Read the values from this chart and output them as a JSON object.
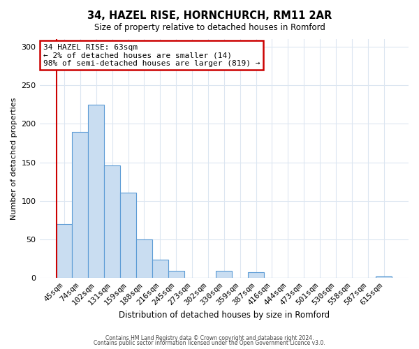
{
  "title": "34, HAZEL RISE, HORNCHURCH, RM11 2AR",
  "subtitle": "Size of property relative to detached houses in Romford",
  "xlabel": "Distribution of detached houses by size in Romford",
  "ylabel": "Number of detached properties",
  "bar_labels": [
    "45sqm",
    "74sqm",
    "102sqm",
    "131sqm",
    "159sqm",
    "188sqm",
    "216sqm",
    "245sqm",
    "273sqm",
    "302sqm",
    "330sqm",
    "359sqm",
    "387sqm",
    "416sqm",
    "444sqm",
    "473sqm",
    "501sqm",
    "530sqm",
    "558sqm",
    "587sqm",
    "615sqm"
  ],
  "bar_heights": [
    70,
    190,
    225,
    146,
    111,
    50,
    24,
    9,
    0,
    0,
    9,
    0,
    8,
    0,
    0,
    0,
    0,
    0,
    0,
    0,
    2
  ],
  "bar_color": "#c9ddf1",
  "bar_edge_color": "#5b9bd5",
  "vline_color": "#cc0000",
  "vline_x": -0.5,
  "annotation_title": "34 HAZEL RISE: 63sqm",
  "annotation_line1": "← 2% of detached houses are smaller (14)",
  "annotation_line2": "98% of semi-detached houses are larger (819) →",
  "annotation_box_color": "#cc0000",
  "ylim": [
    0,
    310
  ],
  "yticks": [
    0,
    50,
    100,
    150,
    200,
    250,
    300
  ],
  "footer1": "Contains HM Land Registry data © Crown copyright and database right 2024.",
  "footer2": "Contains public sector information licensed under the Open Government Licence v3.0.",
  "bg_color": "#ffffff",
  "grid_color": "#dce6f1",
  "figsize": [
    6.0,
    5.0
  ],
  "dpi": 100
}
